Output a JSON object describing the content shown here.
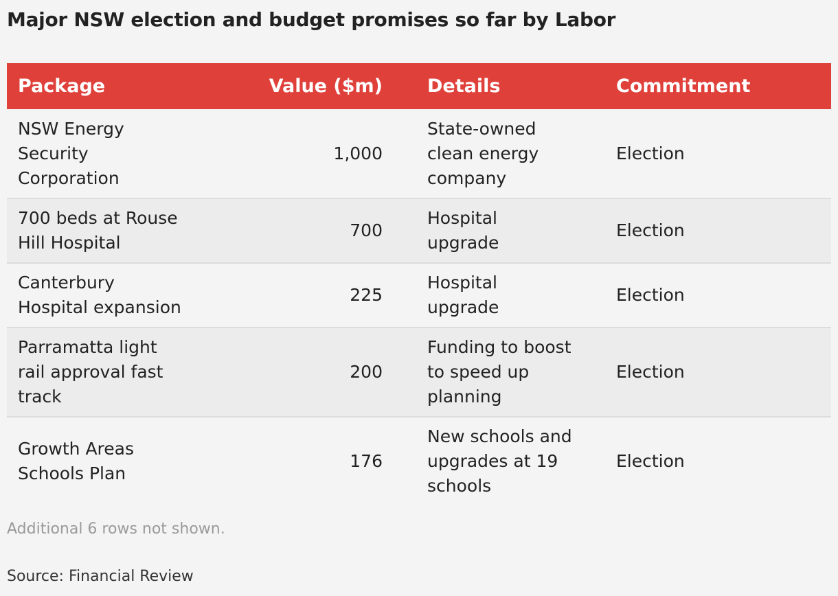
{
  "title": "Major NSW election and budget promises so far by Labor",
  "colors": {
    "header_bg": "#e0403a",
    "header_text": "#ffffff",
    "page_bg": "#f4f4f4",
    "alt_row_bg": "#ececec"
  },
  "chart_data": {
    "type": "table",
    "title": "Major NSW election and budget promises so far by Labor",
    "columns": [
      "Package",
      "Value ($m)",
      "Details",
      "Commitment"
    ],
    "rows": [
      {
        "package": "NSW Energy Security Corporation",
        "value": "1,000",
        "details": "State-owned clean energy company",
        "commitment": "Election"
      },
      {
        "package": "700 beds at Rouse Hill Hospital",
        "value": "700",
        "details": "Hospital upgrade",
        "commitment": "Election"
      },
      {
        "package": "Canterbury Hospital expansion",
        "value": "225",
        "details": "Hospital upgrade",
        "commitment": "Election"
      },
      {
        "package": "Parramatta light rail approval fast track",
        "value": "200",
        "details": "Funding to boost to speed up planning",
        "commitment": "Election"
      },
      {
        "package": "Growth Areas Schools Plan",
        "value": "176",
        "details": "New schools and upgrades at 19 schools",
        "commitment": "Election"
      }
    ]
  },
  "footer": {
    "note": "Additional 6 rows not shown.",
    "source": "Source: Financial Review"
  }
}
